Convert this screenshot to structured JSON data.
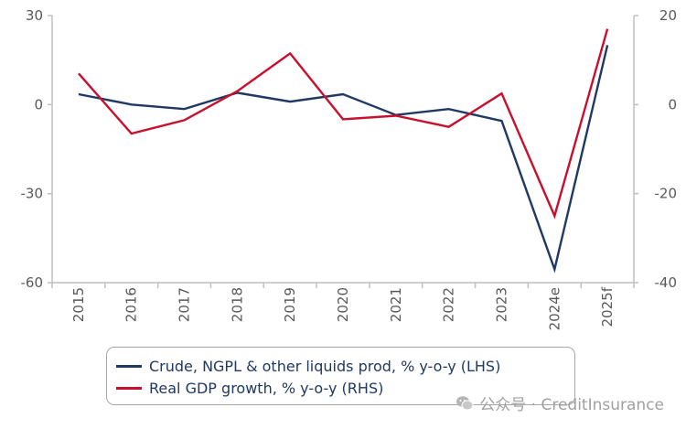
{
  "chart_data": {
    "type": "line",
    "categories": [
      "2015",
      "2016",
      "2017",
      "2018",
      "2019",
      "2020",
      "2021",
      "2022",
      "2023",
      "2024e",
      "2025f"
    ],
    "series": [
      {
        "name": "Crude, NGPL & other liquids prod, % y-o-y (LHS)",
        "axis": "left",
        "color": "#1f3864",
        "values": [
          3.5,
          0,
          -1.5,
          4,
          1,
          3.5,
          -3.5,
          -1.5,
          -5.5,
          -55.5,
          20
        ]
      },
      {
        "name": "Real GDP growth, % y-o-y (RHS)",
        "axis": "right",
        "color": "#c8102e",
        "values": [
          7,
          -6.5,
          -3.5,
          3,
          11.5,
          -3.3,
          -2.5,
          -5,
          2.5,
          -25,
          17
        ]
      }
    ],
    "ylim_left": [
      -60,
      30
    ],
    "yticks_left": [
      "30",
      "0",
      "-30",
      "-60"
    ],
    "ylim_right": [
      -40,
      20
    ],
    "yticks_right": [
      "20",
      "0",
      "-20",
      "-40"
    ],
    "grid": false,
    "legend_position": "bottom"
  },
  "watermark": {
    "text": "公众号 · CreditInsurance",
    "icon": "wechat-icon"
  }
}
